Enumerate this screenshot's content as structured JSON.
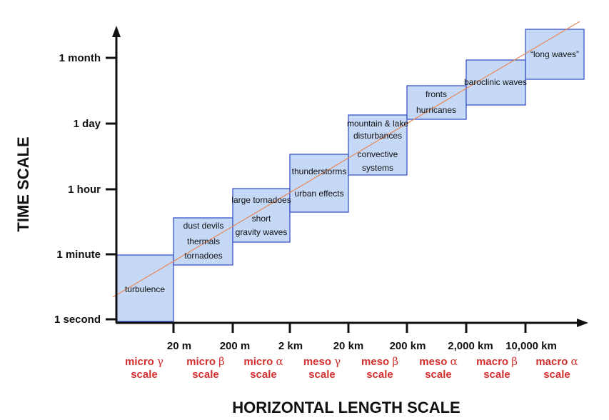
{
  "y_title": "TIME SCALE",
  "x_title": "HORIZONTAL LENGTH SCALE",
  "y_ticks": [
    "1 second",
    "1 minute",
    "1 hour",
    "1 day",
    "1 month"
  ],
  "x_ticks": [
    "20 m",
    "200 m",
    "2 km",
    "20 km",
    "200 km",
    "2,000 km",
    "10,000 km"
  ],
  "scales": [
    {
      "name": "micro",
      "greek": "γ",
      "word": "scale"
    },
    {
      "name": "micro",
      "greek": "β",
      "word": "scale"
    },
    {
      "name": "micro",
      "greek": "α",
      "word": "scale"
    },
    {
      "name": "meso",
      "greek": "γ",
      "word": "scale"
    },
    {
      "name": "meso",
      "greek": "β",
      "word": "scale"
    },
    {
      "name": "meso",
      "greek": "α",
      "word": "scale"
    },
    {
      "name": "macro",
      "greek": "β",
      "word": "scale"
    },
    {
      "name": "macro",
      "greek": "α",
      "word": "scale"
    }
  ],
  "boxes": [
    {
      "lines": [
        "turbulence"
      ]
    },
    {
      "lines": [
        "dust devils",
        "thermals",
        "tornadoes"
      ]
    },
    {
      "lines": [
        "large tornadoes",
        "short",
        "gravity waves"
      ]
    },
    {
      "lines": [
        "thunderstorms",
        "urban effects"
      ]
    },
    {
      "lines": [
        "mountain & lake",
        "disturbances",
        "convective",
        "systems"
      ]
    },
    {
      "lines": [
        "fronts",
        "hurricanes"
      ]
    },
    {
      "lines": [
        "baroclinic waves"
      ]
    },
    {
      "lines": [
        "“long waves”"
      ]
    }
  ],
  "colors": {
    "box_fill": "#c5d8f5",
    "box_stroke": "#3a55c8",
    "trend_line": "#e8895a",
    "scale_label": "#d2312f",
    "axis": "#111111"
  },
  "icons": [
    "y-axis-arrow-icon",
    "x-axis-arrow-icon"
  ]
}
